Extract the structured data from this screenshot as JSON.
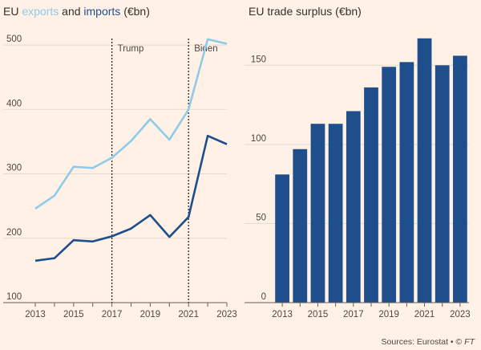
{
  "left_title": {
    "prefix": "EU ",
    "exports": "exports",
    "mid": " and ",
    "imports": "imports",
    "suffix": " (€bn)"
  },
  "right_title": "EU trade surplus (€bn)",
  "source": {
    "text": "Sources: Eurostat • © ",
    "ft": "FT"
  },
  "colors": {
    "exports": "#8fcbe9",
    "imports": "#1f4e8c",
    "bars": "#1f4e8c",
    "grid": "#e6d9ce",
    "background": "#fff1e5"
  },
  "chart_data": [
    {
      "type": "line",
      "title": "EU exports and imports (€bn)",
      "x": [
        2013,
        2014,
        2015,
        2016,
        2017,
        2018,
        2019,
        2020,
        2021,
        2022,
        2023
      ],
      "series": [
        {
          "name": "exports",
          "values": [
            246,
            266,
            311,
            309,
            325,
            351,
            385,
            353,
            400,
            509,
            502
          ]
        },
        {
          "name": "imports",
          "values": [
            165,
            169,
            197,
            195,
            203,
            215,
            236,
            202,
            233,
            359,
            346
          ]
        }
      ],
      "ylim": [
        100,
        530
      ],
      "yticks": [
        100,
        200,
        300,
        400,
        500
      ],
      "xticks": [
        2013,
        2015,
        2017,
        2019,
        2021,
        2023
      ],
      "annotations": [
        {
          "x": 2017,
          "label": "Trump"
        },
        {
          "x": 2021,
          "label": "Biden"
        }
      ],
      "grid": true
    },
    {
      "type": "bar",
      "title": "EU trade surplus (€bn)",
      "categories": [
        2013,
        2014,
        2015,
        2016,
        2017,
        2018,
        2019,
        2020,
        2021,
        2022,
        2023
      ],
      "values": [
        81,
        97,
        113,
        113,
        121,
        136,
        149,
        152,
        167,
        150,
        156
      ],
      "ylim": [
        0,
        175
      ],
      "yticks": [
        0,
        50,
        100,
        150
      ],
      "xticks": [
        2013,
        2015,
        2017,
        2019,
        2021,
        2023
      ],
      "grid": true
    }
  ]
}
